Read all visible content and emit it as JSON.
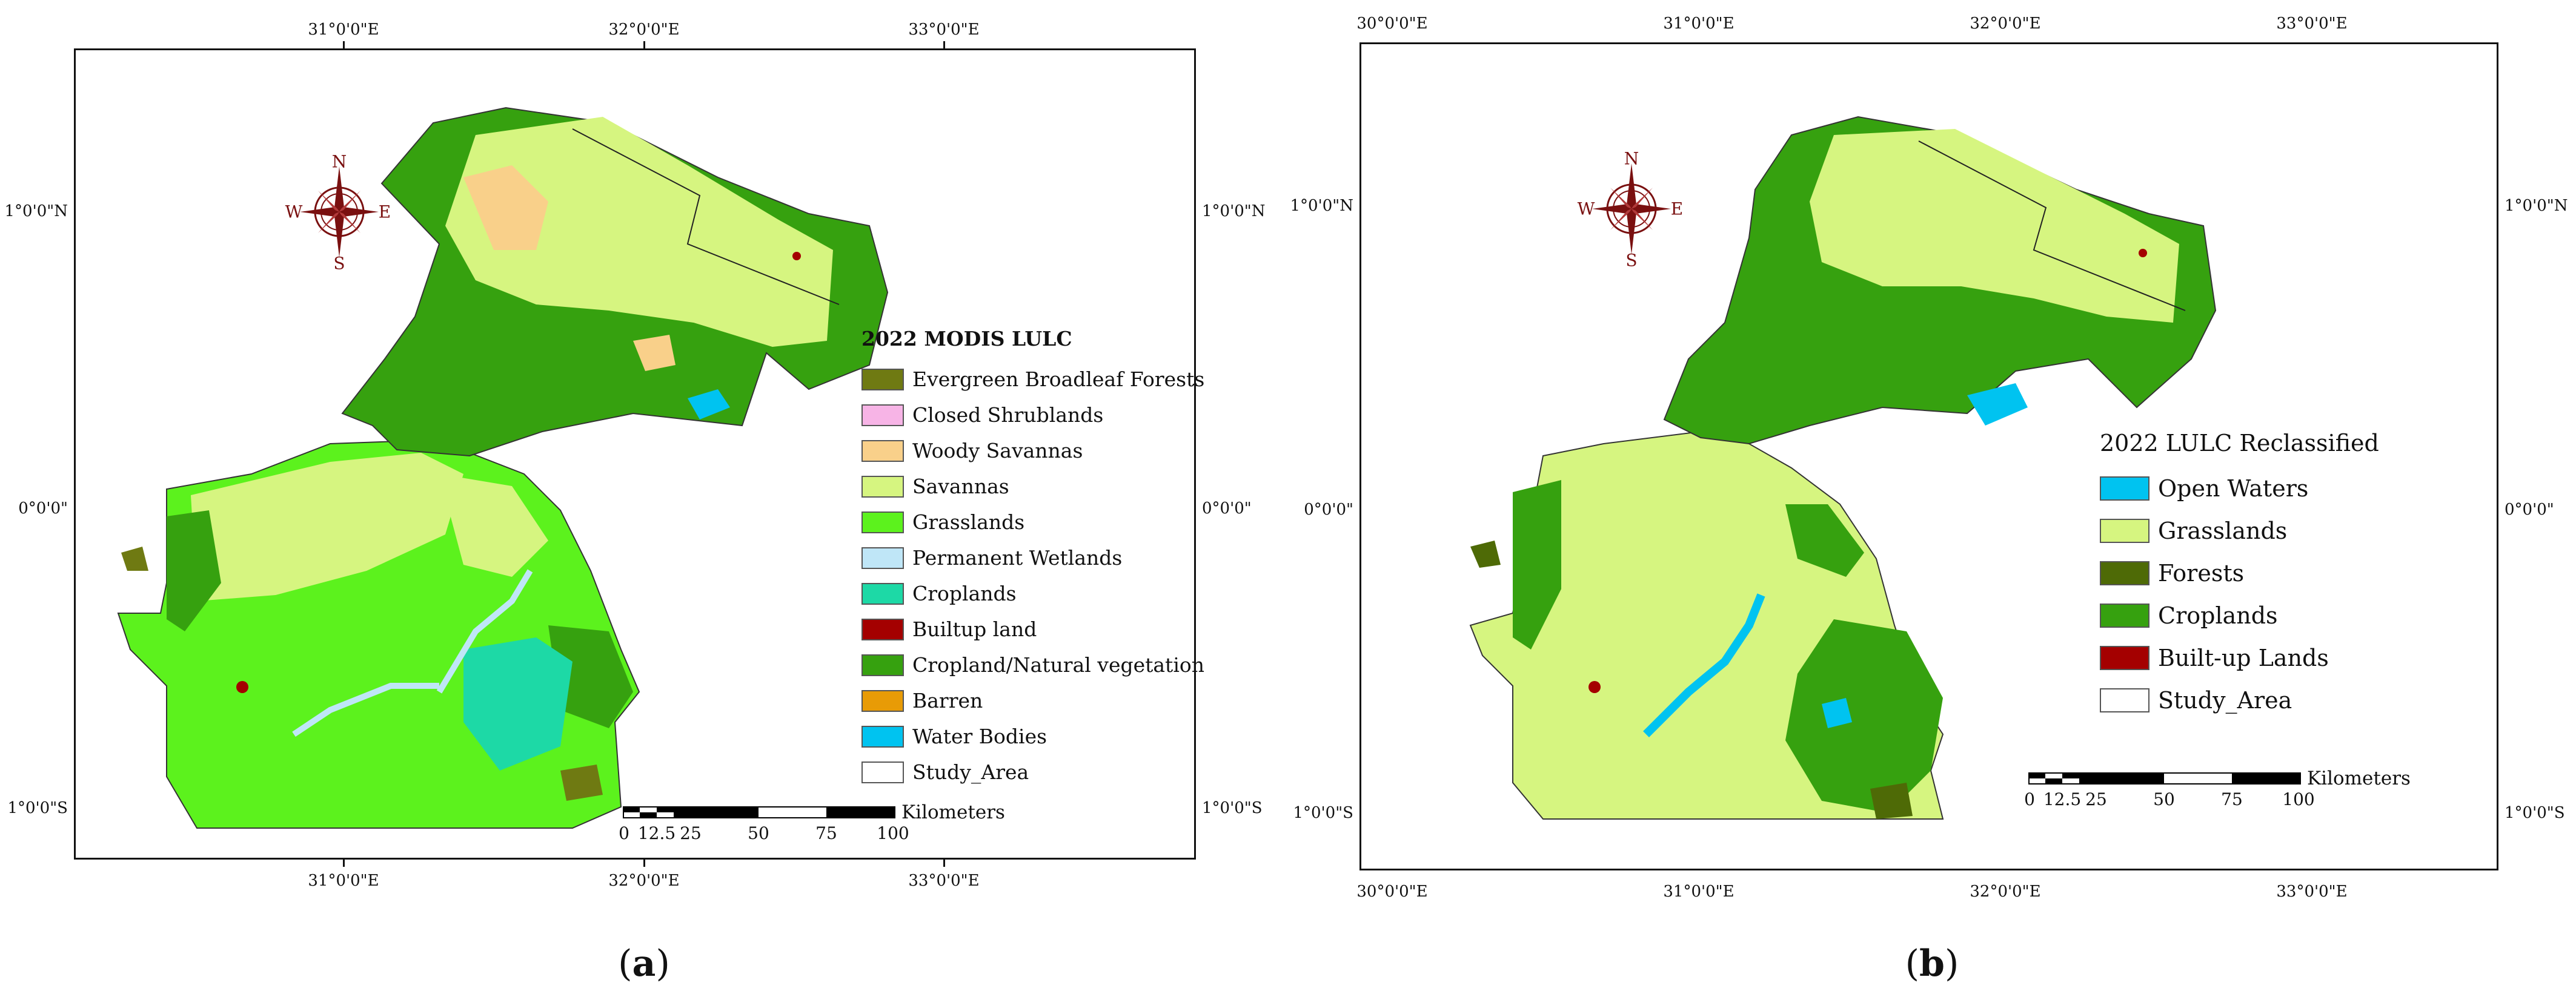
{
  "panels": [
    {
      "caption_letter": "a",
      "lon_ticks_top": [
        "31°0'0\"E",
        "32°0'0\"E",
        "33°0'0\"E"
      ],
      "lon_ticks_bottom": [
        "31°0'0\"E",
        "32°0'0\"E",
        "33°0'0\"E"
      ],
      "lat_ticks_left": [
        "1°0'0\"N",
        "0°0'0\"",
        "1°0'0\"S"
      ],
      "lat_ticks_right": [
        "1°0'0\"N",
        "0°0'0\"",
        "1°0'0\"S"
      ],
      "compass_letters": {
        "n": "N",
        "s": "S",
        "e": "E",
        "w": "W"
      },
      "legend": {
        "title": "2022 MODIS LULC",
        "items": [
          {
            "label": "Evergreen Broadleaf Forests",
            "color": "#6f7a12"
          },
          {
            "label": "Closed Shrublands",
            "color": "#f7b4e6"
          },
          {
            "label": "Woody Savannas",
            "color": "#f9d08a"
          },
          {
            "label": "Savannas",
            "color": "#d6f580"
          },
          {
            "label": "Grasslands",
            "color": "#5cf21d"
          },
          {
            "label": "Permanent Wetlands",
            "color": "#bfe6f7"
          },
          {
            "label": "Croplands",
            "color": "#1dd9a6"
          },
          {
            "label": "Builtup land",
            "color": "#a40000"
          },
          {
            "label": "Cropland/Natural vegetation",
            "color": "#36a10f"
          },
          {
            "label": "Barren",
            "color": "#e89b06"
          },
          {
            "label": "Water Bodies",
            "color": "#00c3f0"
          },
          {
            "label": "Study_Area",
            "color": "#ffffff"
          }
        ]
      },
      "scale": {
        "unit": "Kilometers",
        "labels": [
          "0",
          "12.5",
          "25",
          "50",
          "75",
          "100"
        ]
      }
    },
    {
      "caption_letter": "b",
      "lon_ticks_top": [
        "30°0'0\"E",
        "31°0'0\"E",
        "32°0'0\"E",
        "33°0'0\"E"
      ],
      "lon_ticks_bottom": [
        "30°0'0\"E",
        "31°0'0\"E",
        "32°0'0\"E",
        "33°0'0\"E"
      ],
      "lat_ticks_left": [
        "1°0'0\"N",
        "0°0'0\"",
        "1°0'0\"S"
      ],
      "lat_ticks_right": [
        "1°0'0\"N",
        "0°0'0\"",
        "1°0'0\"S"
      ],
      "compass_letters": {
        "n": "N",
        "s": "S",
        "e": "E",
        "w": "W"
      },
      "legend": {
        "title": "2022 LULC Reclassified",
        "items": [
          {
            "label": "Open Waters",
            "color": "#00c3f0"
          },
          {
            "label": "Grasslands",
            "color": "#d6f580"
          },
          {
            "label": "Forests",
            "color": "#4e6a06"
          },
          {
            "label": "Croplands",
            "color": "#36a10f"
          },
          {
            "label": "Built-up Lands",
            "color": "#a40000"
          },
          {
            "label": "Study_Area",
            "color": "#ffffff"
          }
        ]
      },
      "scale": {
        "unit": "Kilometers",
        "labels": [
          "0",
          "12.5",
          "25",
          "50",
          "75",
          "100"
        ]
      }
    }
  ]
}
